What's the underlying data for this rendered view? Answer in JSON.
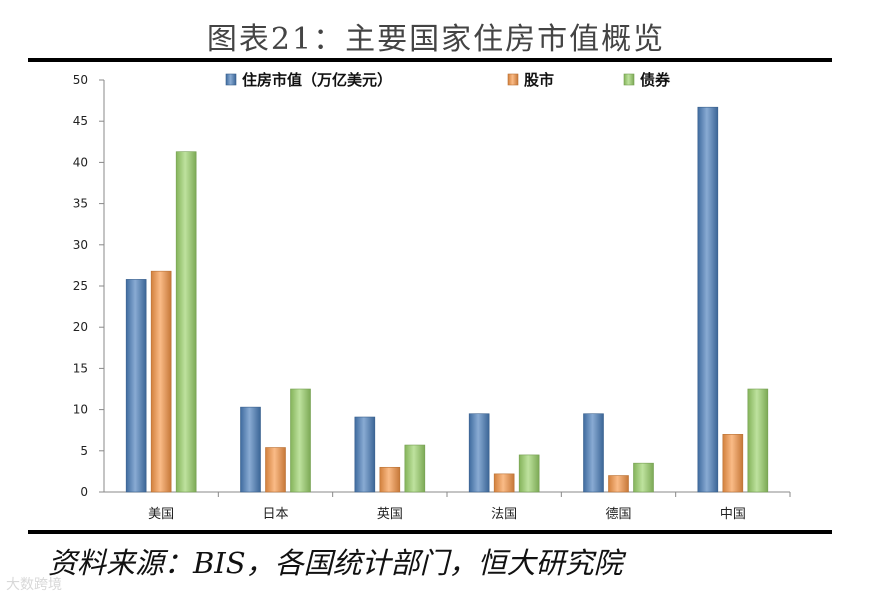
{
  "header": {
    "title": "图表21：主要国家住房市值概览"
  },
  "footer": {
    "source": "资料来源：BIS，各国统计部门，恒大研究院",
    "watermark": "大数跨境"
  },
  "colors": {
    "housing": "#4a7ebb",
    "stock": "#f79646",
    "bond": "#9bd36a",
    "axis": "#888888"
  },
  "chart_data": {
    "type": "bar",
    "categories": [
      "美国",
      "日本",
      "英国",
      "法国",
      "德国",
      "中国"
    ],
    "series": [
      {
        "name": "住房市值（万亿美元）",
        "values": [
          25.8,
          10.3,
          9.1,
          9.5,
          9.5,
          46.7
        ]
      },
      {
        "name": "股市",
        "values": [
          26.8,
          5.4,
          3.0,
          2.2,
          2.0,
          7.0
        ]
      },
      {
        "name": "债券",
        "values": [
          41.3,
          12.5,
          5.7,
          4.5,
          3.5,
          12.5
        ]
      }
    ],
    "yticks": [
      "0",
      "5",
      "10",
      "15",
      "20",
      "25",
      "30",
      "35",
      "40",
      "45",
      "50"
    ],
    "ylim": [
      0,
      50
    ],
    "legend_position": "top-center",
    "grid": false
  }
}
